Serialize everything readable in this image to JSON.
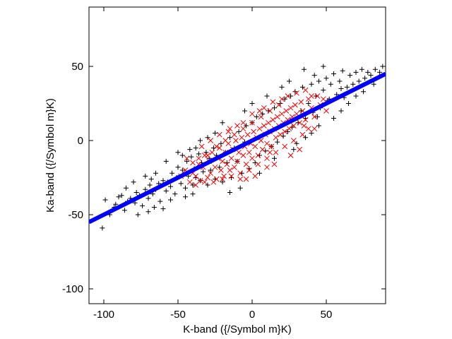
{
  "chart_data": {
    "type": "scatter",
    "title": "",
    "xlabel": "K-band ({/Symbol m}K)",
    "ylabel": "Ka-band ({/Symbol m}K)",
    "xlim": [
      -110,
      90
    ],
    "ylim": [
      -110,
      90
    ],
    "grid": false,
    "legend": "none",
    "x_ticks": [
      -100,
      -50,
      0,
      50
    ],
    "x_tick_labels": [
      "-100",
      "-50",
      "0",
      "50"
    ],
    "y_ticks": [
      -100,
      -50,
      0,
      50
    ],
    "y_tick_labels": [
      "-100",
      "-50",
      "0",
      "50"
    ],
    "fit_line": {
      "color": "#0000ff",
      "slope": 0.5,
      "intercept": 0,
      "x_range": [
        -110,
        90
      ]
    },
    "series": [
      {
        "marker": "plus",
        "color": "#000000",
        "points": [
          [
            -101,
            -59
          ],
          [
            -99,
            -40
          ],
          [
            -93,
            -45
          ],
          [
            -92,
            -43
          ],
          [
            -88,
            -37
          ],
          [
            -86,
            -47
          ],
          [
            -84,
            -41
          ],
          [
            -82,
            -39
          ],
          [
            -79,
            -42
          ],
          [
            -78,
            -35
          ],
          [
            -76,
            -37
          ],
          [
            -74,
            -44
          ],
          [
            -72,
            -33
          ],
          [
            -70,
            -39
          ],
          [
            -69,
            -30
          ],
          [
            -67,
            -36
          ],
          [
            -65,
            -33
          ],
          [
            -63,
            -29
          ],
          [
            -62,
            -41
          ],
          [
            -60,
            -27
          ],
          [
            -58,
            -34
          ],
          [
            -57,
            -28
          ],
          [
            -55,
            -31
          ],
          [
            -54,
            -22
          ],
          [
            -52,
            -36
          ],
          [
            -51,
            -25
          ],
          [
            -50,
            -18
          ],
          [
            -48,
            -29
          ],
          [
            -47,
            -20
          ],
          [
            -45,
            -32
          ],
          [
            -44,
            -14
          ],
          [
            -43,
            -24
          ],
          [
            -41,
            -11
          ],
          [
            -40,
            -30
          ],
          [
            -39,
            -19
          ],
          [
            -38,
            -25
          ],
          [
            -36,
            -9
          ],
          [
            -35,
            -27
          ],
          [
            -34,
            -15
          ],
          [
            -33,
            -21
          ],
          [
            -31,
            -8
          ],
          [
            -30,
            -30
          ],
          [
            -29,
            -12
          ],
          [
            -28,
            -20
          ],
          [
            -26,
            -5
          ],
          [
            -25,
            -26
          ],
          [
            -24,
            -10
          ],
          [
            -22,
            -18
          ],
          [
            -21,
            -2
          ],
          [
            -20,
            -28
          ],
          [
            -18,
            -8
          ],
          [
            -17,
            -15
          ],
          [
            -15,
            2
          ],
          [
            -14,
            -25
          ],
          [
            -12,
            -5
          ],
          [
            -10,
            -14
          ],
          [
            -9,
            6
          ],
          [
            -7,
            -22
          ],
          [
            -5,
            -1
          ],
          [
            -4,
            10
          ],
          [
            -2,
            -19
          ],
          [
            0,
            12
          ],
          [
            2,
            -15
          ],
          [
            3,
            16
          ],
          [
            5,
            -10
          ],
          [
            7,
            18
          ],
          [
            9,
            -7
          ],
          [
            11,
            20
          ],
          [
            13,
            -4
          ],
          [
            15,
            22
          ],
          [
            17,
            -1
          ],
          [
            19,
            25
          ],
          [
            21,
            3
          ],
          [
            22,
            28
          ],
          [
            24,
            6
          ],
          [
            26,
            30
          ],
          [
            27,
            9
          ],
          [
            29,
            33
          ],
          [
            31,
            12
          ],
          [
            33,
            20
          ],
          [
            34,
            36
          ],
          [
            36,
            15
          ],
          [
            38,
            25
          ],
          [
            40,
            38
          ],
          [
            41,
            19
          ],
          [
            43,
            30
          ],
          [
            45,
            40
          ],
          [
            46,
            22
          ],
          [
            48,
            34
          ],
          [
            50,
            42
          ],
          [
            51,
            27
          ],
          [
            53,
            38
          ],
          [
            55,
            45
          ],
          [
            57,
            31
          ],
          [
            59,
            40
          ],
          [
            61,
            47
          ],
          [
            62,
            29
          ],
          [
            64,
            36
          ],
          [
            66,
            44
          ],
          [
            68,
            38
          ],
          [
            70,
            46
          ],
          [
            72,
            40
          ],
          [
            74,
            48
          ],
          [
            76,
            42
          ],
          [
            78,
            46
          ],
          [
            80,
            44
          ],
          [
            83,
            48
          ],
          [
            86,
            46
          ],
          [
            88,
            50
          ],
          [
            35,
            48
          ],
          [
            42,
            44
          ],
          [
            48,
            50
          ],
          [
            -70,
            -48
          ],
          [
            -60,
            -46
          ],
          [
            -55,
            -40
          ],
          [
            -45,
            -38
          ],
          [
            -40,
            -36
          ],
          [
            -38,
            -5
          ],
          [
            -30,
            2
          ],
          [
            -25,
            5
          ],
          [
            -58,
            -14
          ],
          [
            -47,
            -10
          ],
          [
            -42,
            -6
          ],
          [
            -65,
            -22
          ],
          [
            30,
            -2
          ],
          [
            40,
            5
          ],
          [
            45,
            10
          ],
          [
            55,
            15
          ],
          [
            60,
            20
          ],
          [
            65,
            25
          ],
          [
            70,
            30
          ],
          [
            75,
            33
          ],
          [
            82,
            38
          ],
          [
            -80,
            -28
          ],
          [
            -85,
            -32
          ],
          [
            -90,
            -38
          ],
          [
            -96,
            -50
          ],
          [
            -77,
            -50
          ],
          [
            -66,
            -45
          ],
          [
            20,
            36
          ],
          [
            25,
            40
          ],
          [
            10,
            30
          ],
          [
            0,
            25
          ],
          [
            -5,
            20
          ],
          [
            -8,
            -32
          ],
          [
            5,
            -22
          ],
          [
            15,
            -12
          ],
          [
            -15,
            -35
          ],
          [
            -20,
            12
          ],
          [
            -35,
            0
          ],
          [
            -50,
            -8
          ],
          [
            60,
            35
          ],
          [
            52,
            28
          ],
          [
            44,
            16
          ],
          [
            36,
            2
          ],
          [
            28,
            -6
          ],
          [
            -68,
            -26
          ],
          [
            -72,
            -24
          ]
        ]
      },
      {
        "marker": "cross",
        "color": "#ff0000",
        "points": [
          [
            -45,
            -20
          ],
          [
            -42,
            -28
          ],
          [
            -40,
            -15
          ],
          [
            -38,
            -24
          ],
          [
            -36,
            -12
          ],
          [
            -35,
            -27
          ],
          [
            -33,
            -18
          ],
          [
            -32,
            -10
          ],
          [
            -30,
            -25
          ],
          [
            -29,
            -14
          ],
          [
            -28,
            -22
          ],
          [
            -27,
            -8
          ],
          [
            -25,
            -18
          ],
          [
            -24,
            -26
          ],
          [
            -23,
            -12
          ],
          [
            -22,
            -5
          ],
          [
            -21,
            -20
          ],
          [
            -20,
            -14
          ],
          [
            -19,
            -24
          ],
          [
            -18,
            -8
          ],
          [
            -17,
            -16
          ],
          [
            -16,
            -2
          ],
          [
            -15,
            -20
          ],
          [
            -14,
            -12
          ],
          [
            -13,
            -6
          ],
          [
            -12,
            -18
          ],
          [
            -11,
            0
          ],
          [
            -10,
            -14
          ],
          [
            -9,
            -8
          ],
          [
            -8,
            -22
          ],
          [
            -7,
            2
          ],
          [
            -6,
            -10
          ],
          [
            -5,
            -4
          ],
          [
            -4,
            -16
          ],
          [
            -3,
            4
          ],
          [
            -2,
            -8
          ],
          [
            -1,
            -2
          ],
          [
            0,
            -12
          ],
          [
            1,
            6
          ],
          [
            2,
            -4
          ],
          [
            3,
            2
          ],
          [
            4,
            -10
          ],
          [
            5,
            8
          ],
          [
            6,
            0
          ],
          [
            7,
            -6
          ],
          [
            8,
            10
          ],
          [
            9,
            4
          ],
          [
            10,
            -2
          ],
          [
            11,
            12
          ],
          [
            12,
            6
          ],
          [
            13,
            -4
          ],
          [
            14,
            14
          ],
          [
            15,
            8
          ],
          [
            16,
            2
          ],
          [
            17,
            16
          ],
          [
            18,
            10
          ],
          [
            19,
            4
          ],
          [
            20,
            18
          ],
          [
            21,
            12
          ],
          [
            22,
            6
          ],
          [
            23,
            20
          ],
          [
            24,
            14
          ],
          [
            25,
            8
          ],
          [
            26,
            22
          ],
          [
            27,
            16
          ],
          [
            28,
            10
          ],
          [
            29,
            24
          ],
          [
            30,
            18
          ],
          [
            32,
            12
          ],
          [
            33,
            26
          ],
          [
            34,
            20
          ],
          [
            36,
            14
          ],
          [
            38,
            28
          ],
          [
            40,
            22
          ],
          [
            42,
            16
          ],
          [
            44,
            30
          ],
          [
            46,
            24
          ],
          [
            24,
            30
          ],
          [
            18,
            24
          ],
          [
            12,
            20
          ],
          [
            6,
            16
          ],
          [
            0,
            12
          ],
          [
            -6,
            8
          ],
          [
            -12,
            4
          ],
          [
            -18,
            0
          ],
          [
            -24,
            -4
          ],
          [
            -30,
            -10
          ],
          [
            -36,
            -16
          ],
          [
            -40,
            -22
          ],
          [
            -8,
            -26
          ],
          [
            -2,
            -20
          ],
          [
            4,
            -16
          ],
          [
            10,
            -12
          ],
          [
            16,
            -8
          ],
          [
            22,
            -4
          ],
          [
            28,
            0
          ],
          [
            34,
            4
          ],
          [
            38,
            8
          ],
          [
            -26,
            -28
          ],
          [
            -20,
            -26
          ],
          [
            -14,
            -24
          ],
          [
            8,
            22
          ],
          [
            14,
            26
          ],
          [
            20,
            28
          ],
          [
            30,
            32
          ],
          [
            36,
            34
          ],
          [
            -48,
            -24
          ],
          [
            -44,
            -12
          ],
          [
            -34,
            -4
          ],
          [
            -28,
            0
          ],
          [
            42,
            8
          ],
          [
            48,
            28
          ],
          [
            50,
            20
          ],
          [
            -15,
            8
          ],
          [
            -10,
            10
          ],
          [
            0,
            18
          ],
          [
            5,
            20
          ],
          [
            2,
            -24
          ],
          [
            -4,
            -26
          ],
          [
            10,
            -18
          ],
          [
            15,
            -16
          ],
          [
            26,
            -10
          ],
          [
            32,
            -6
          ],
          [
            -22,
            4
          ],
          [
            -16,
            6
          ],
          [
            40,
            30
          ],
          [
            35,
            10
          ],
          [
            -38,
            -30
          ],
          [
            -32,
            -28
          ],
          [
            12,
            -8
          ],
          [
            -6,
            12
          ]
        ]
      }
    ]
  }
}
